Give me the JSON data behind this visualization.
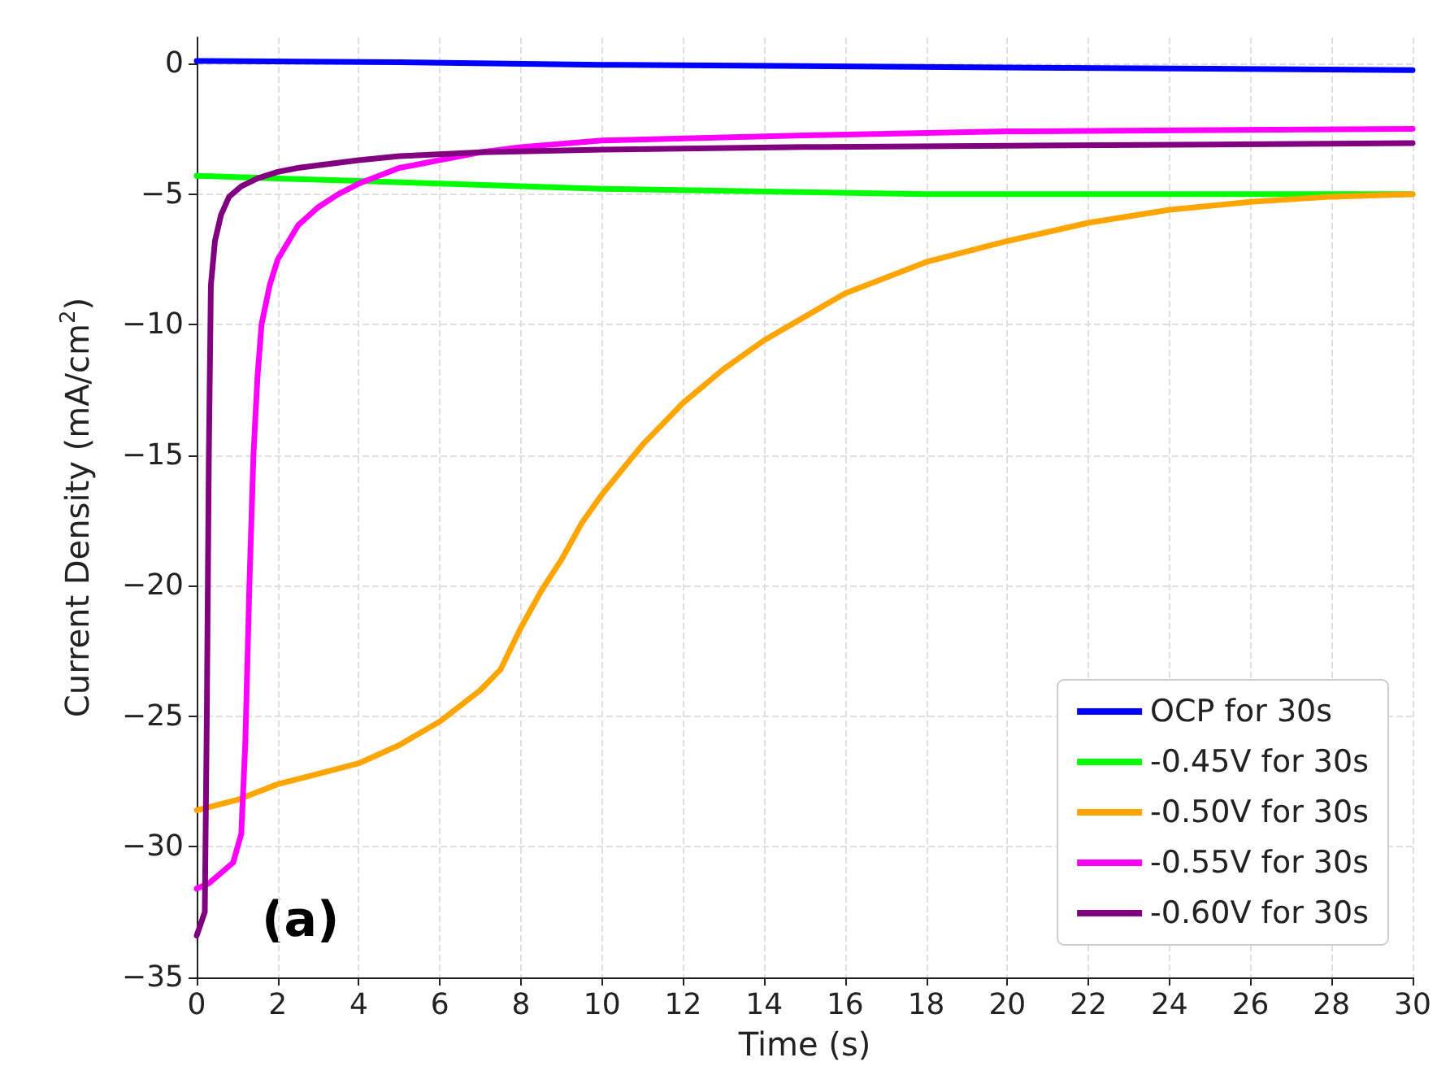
{
  "chart_data": {
    "type": "line",
    "xlabel": "Time (s)",
    "ylabel": "Current Density (mA/cm$^{2}$)",
    "xlim": [
      0,
      30
    ],
    "xticks": [
      0,
      2,
      4,
      6,
      8,
      10,
      12,
      14,
      16,
      18,
      20,
      22,
      24,
      26,
      28,
      30
    ],
    "ylim": [
      -35,
      1
    ],
    "yticks": [
      -35,
      -30,
      -25,
      -20,
      -15,
      -10,
      -5,
      0
    ],
    "grid": true,
    "legend": "bottom right",
    "line_style": "solid",
    "annotations": [
      "(a)"
    ],
    "series": [
      {
        "name": "OCP for 30s",
        "color": "#0000ff",
        "x": [
          0,
          5,
          10,
          15,
          20,
          25,
          30
        ],
        "values": [
          0.1,
          0.05,
          -0.05,
          -0.1,
          -0.15,
          -0.2,
          -0.25
        ]
      },
      {
        "name": "-0.45V for 30s",
        "color": "#00ff00",
        "x": [
          0,
          2,
          4,
          6,
          8,
          10,
          14,
          18,
          22,
          26,
          30
        ],
        "values": [
          -4.3,
          -4.4,
          -4.5,
          -4.6,
          -4.7,
          -4.8,
          -4.9,
          -5.0,
          -5.0,
          -5.0,
          -5.0
        ]
      },
      {
        "name": "-0.50V for 30s",
        "color": "#ffa500",
        "x": [
          0,
          1,
          2,
          3,
          4,
          5,
          6,
          7,
          7.5,
          8,
          8.5,
          9,
          9.5,
          10,
          11,
          12,
          13,
          14,
          16,
          18,
          20,
          22,
          24,
          26,
          28,
          30
        ],
        "values": [
          -28.6,
          -28.2,
          -27.6,
          -27.2,
          -26.8,
          -26.1,
          -25.2,
          -24.0,
          -23.2,
          -21.6,
          -20.2,
          -19.0,
          -17.6,
          -16.5,
          -14.6,
          -13.0,
          -11.7,
          -10.6,
          -8.8,
          -7.6,
          -6.8,
          -6.1,
          -5.6,
          -5.3,
          -5.1,
          -5.0
        ]
      },
      {
        "name": "-0.55V for 30s",
        "color": "#ff00ff",
        "x": [
          0,
          0.3,
          0.6,
          0.9,
          1.1,
          1.2,
          1.3,
          1.4,
          1.5,
          1.6,
          1.8,
          2,
          2.5,
          3,
          3.5,
          4,
          5,
          6,
          7,
          8,
          10,
          15,
          20,
          25,
          30
        ],
        "values": [
          -31.6,
          -31.4,
          -31.0,
          -30.6,
          -29.5,
          -26,
          -20,
          -15,
          -12,
          -10,
          -8.5,
          -7.5,
          -6.2,
          -5.5,
          -5.0,
          -4.6,
          -4.0,
          -3.7,
          -3.4,
          -3.2,
          -2.95,
          -2.75,
          -2.6,
          -2.55,
          -2.5
        ]
      },
      {
        "name": "-0.60V for 30s",
        "color": "#800080",
        "x": [
          0,
          0.2,
          0.25,
          0.3,
          0.35,
          0.45,
          0.6,
          0.8,
          1.1,
          1.5,
          2,
          2.5,
          3,
          4,
          5,
          7,
          10,
          15,
          20,
          25,
          30
        ],
        "values": [
          -33.4,
          -32.5,
          -25,
          -15,
          -8.5,
          -6.8,
          -5.8,
          -5.1,
          -4.7,
          -4.4,
          -4.15,
          -4.0,
          -3.9,
          -3.7,
          -3.55,
          -3.4,
          -3.3,
          -3.2,
          -3.15,
          -3.1,
          -3.05
        ]
      }
    ]
  }
}
